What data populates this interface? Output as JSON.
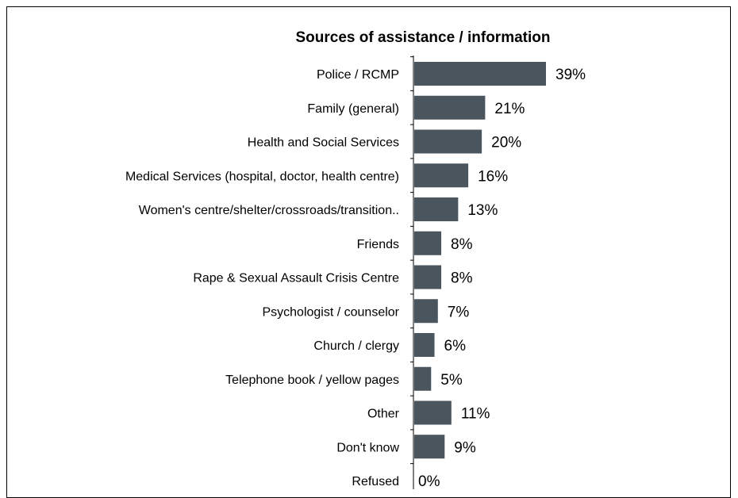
{
  "chart_data": {
    "type": "bar",
    "orientation": "horizontal",
    "title": "Sources of assistance / information",
    "xlabel": "",
    "ylabel": "",
    "categories": [
      "Police / RCMP",
      "Family (general)",
      "Health and Social Services",
      "Medical Services (hospital, doctor, health centre)",
      "Women's centre/shelter/crossroads/transition..",
      "Friends",
      "Rape & Sexual Assault Crisis Centre",
      "Psychologist / counselor",
      "Church / clergy",
      "Telephone book / yellow pages",
      "Other",
      "Don't know",
      "Refused"
    ],
    "values": [
      39,
      21,
      20,
      16,
      13,
      8,
      8,
      7,
      6,
      5,
      11,
      9,
      0
    ],
    "value_labels": [
      "39%",
      "21%",
      "20%",
      "16%",
      "13%",
      "8%",
      "8%",
      "7%",
      "6%",
      "5%",
      "11%",
      "9%",
      "0%"
    ],
    "xlim": [
      0,
      39
    ],
    "grid": false,
    "bar_color": "#4a555e"
  }
}
